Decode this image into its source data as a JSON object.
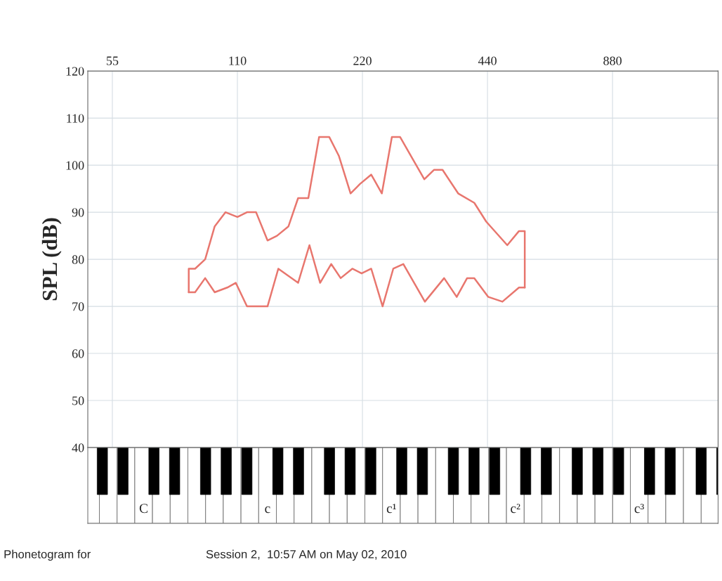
{
  "chart_data": {
    "type": "line",
    "ylabel": "SPL (dB)",
    "log": "x",
    "xlim": [
      48,
      1580
    ],
    "xticks": [
      55,
      110,
      220,
      440,
      880
    ],
    "ylim": [
      40,
      120
    ],
    "yticks": [
      40,
      50,
      60,
      70,
      80,
      90,
      100,
      110,
      120
    ],
    "grid": true,
    "series": [
      {
        "color": "#e8766e",
        "x": [
          84,
          84,
          87,
          92,
          97,
          103,
          110,
          116,
          122,
          130,
          137,
          146,
          154,
          163,
          173,
          183,
          193,
          206,
          217,
          231,
          245,
          259,
          271,
          292,
          310,
          327,
          343,
          374,
          409,
          437,
          491,
          524,
          541,
          541
        ],
        "values": [
          73,
          78,
          78,
          80,
          87,
          90,
          89,
          90,
          90,
          84,
          85,
          87,
          93,
          93,
          106,
          106,
          102,
          94,
          96,
          98,
          94,
          106,
          106,
          101,
          97,
          99,
          99,
          94,
          92,
          88,
          83,
          86,
          86,
          74
        ]
      },
      {
        "color": "#e8766e",
        "x": [
          84,
          87,
          92,
          97,
          104,
          109,
          116,
          130,
          138,
          154,
          164,
          174,
          185,
          195,
          208,
          219,
          231,
          246,
          261,
          276,
          311,
          346,
          371,
          393,
          409,
          442,
          478,
          524,
          541
        ],
        "values": [
          73,
          73,
          76,
          73,
          74,
          75,
          70,
          70,
          78,
          75,
          83,
          75,
          79,
          76,
          78,
          77,
          78,
          70,
          78,
          79,
          71,
          76,
          72,
          76,
          76,
          72,
          71,
          74,
          74
        ]
      }
    ],
    "annotations": [
      "Phonetogram for",
      "Session 2,  10:57 AM on May 02, 2010",
      "C",
      "c",
      "c¹",
      "c²",
      "c³"
    ]
  }
}
